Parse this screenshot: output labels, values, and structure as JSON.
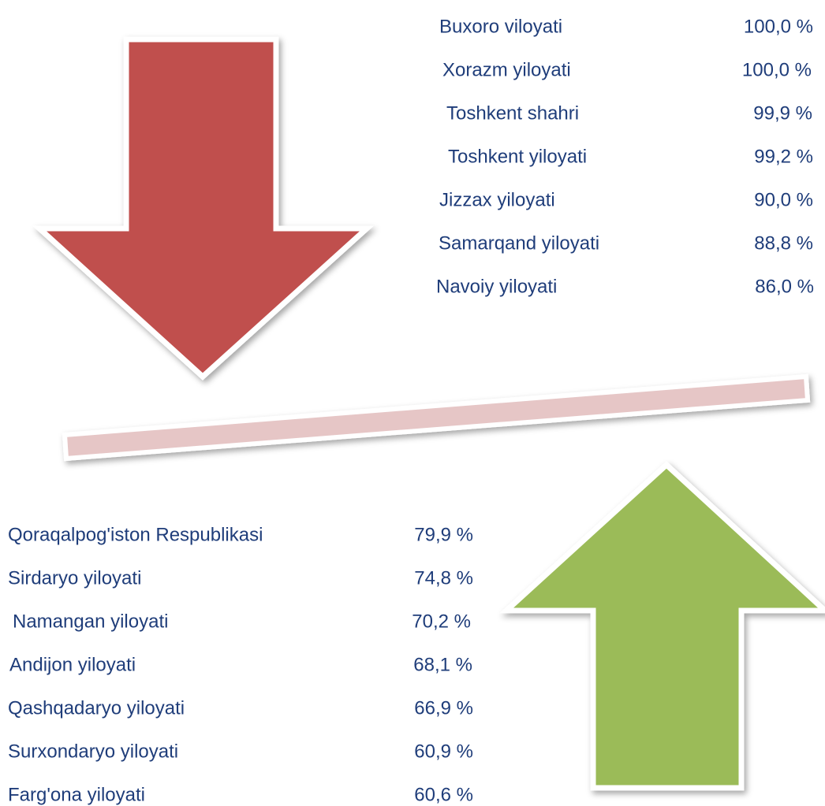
{
  "top_list": [
    {
      "name": "Buxoro viloyati",
      "value": "100,0 %"
    },
    {
      "name": "Xorazm yiloyati",
      "value": "100,0 %"
    },
    {
      "name": "Toshkent shahri",
      "value": "99,9 %"
    },
    {
      "name": "Toshkent yiloyati",
      "value": "99,2 %"
    },
    {
      "name": "Jizzax yiloyati",
      "value": "90,0 %"
    },
    {
      "name": "Samarqand yiloyati",
      "value": "88,8 %"
    },
    {
      "name": "Navoiy yiloyati",
      "value": "86,0 %"
    }
  ],
  "bottom_list": [
    {
      "name": "Qoraqalpog'iston Respublikasi",
      "value": "79,9 %"
    },
    {
      "name": "Sirdaryo yiloyati",
      "value": "74,8 %"
    },
    {
      "name": "Namangan yiloyati",
      "value": "70,2 %"
    },
    {
      "name": "Andijon yiloyati",
      "value": "68,1 %"
    },
    {
      "name": "Qashqadaryo yiloyati",
      "value": "66,9 %"
    },
    {
      "name": "Surxondaryo yiloyati",
      "value": "60,9 %"
    },
    {
      "name": "Farg'ona yiloyati",
      "value": "60,6 %"
    }
  ]
}
